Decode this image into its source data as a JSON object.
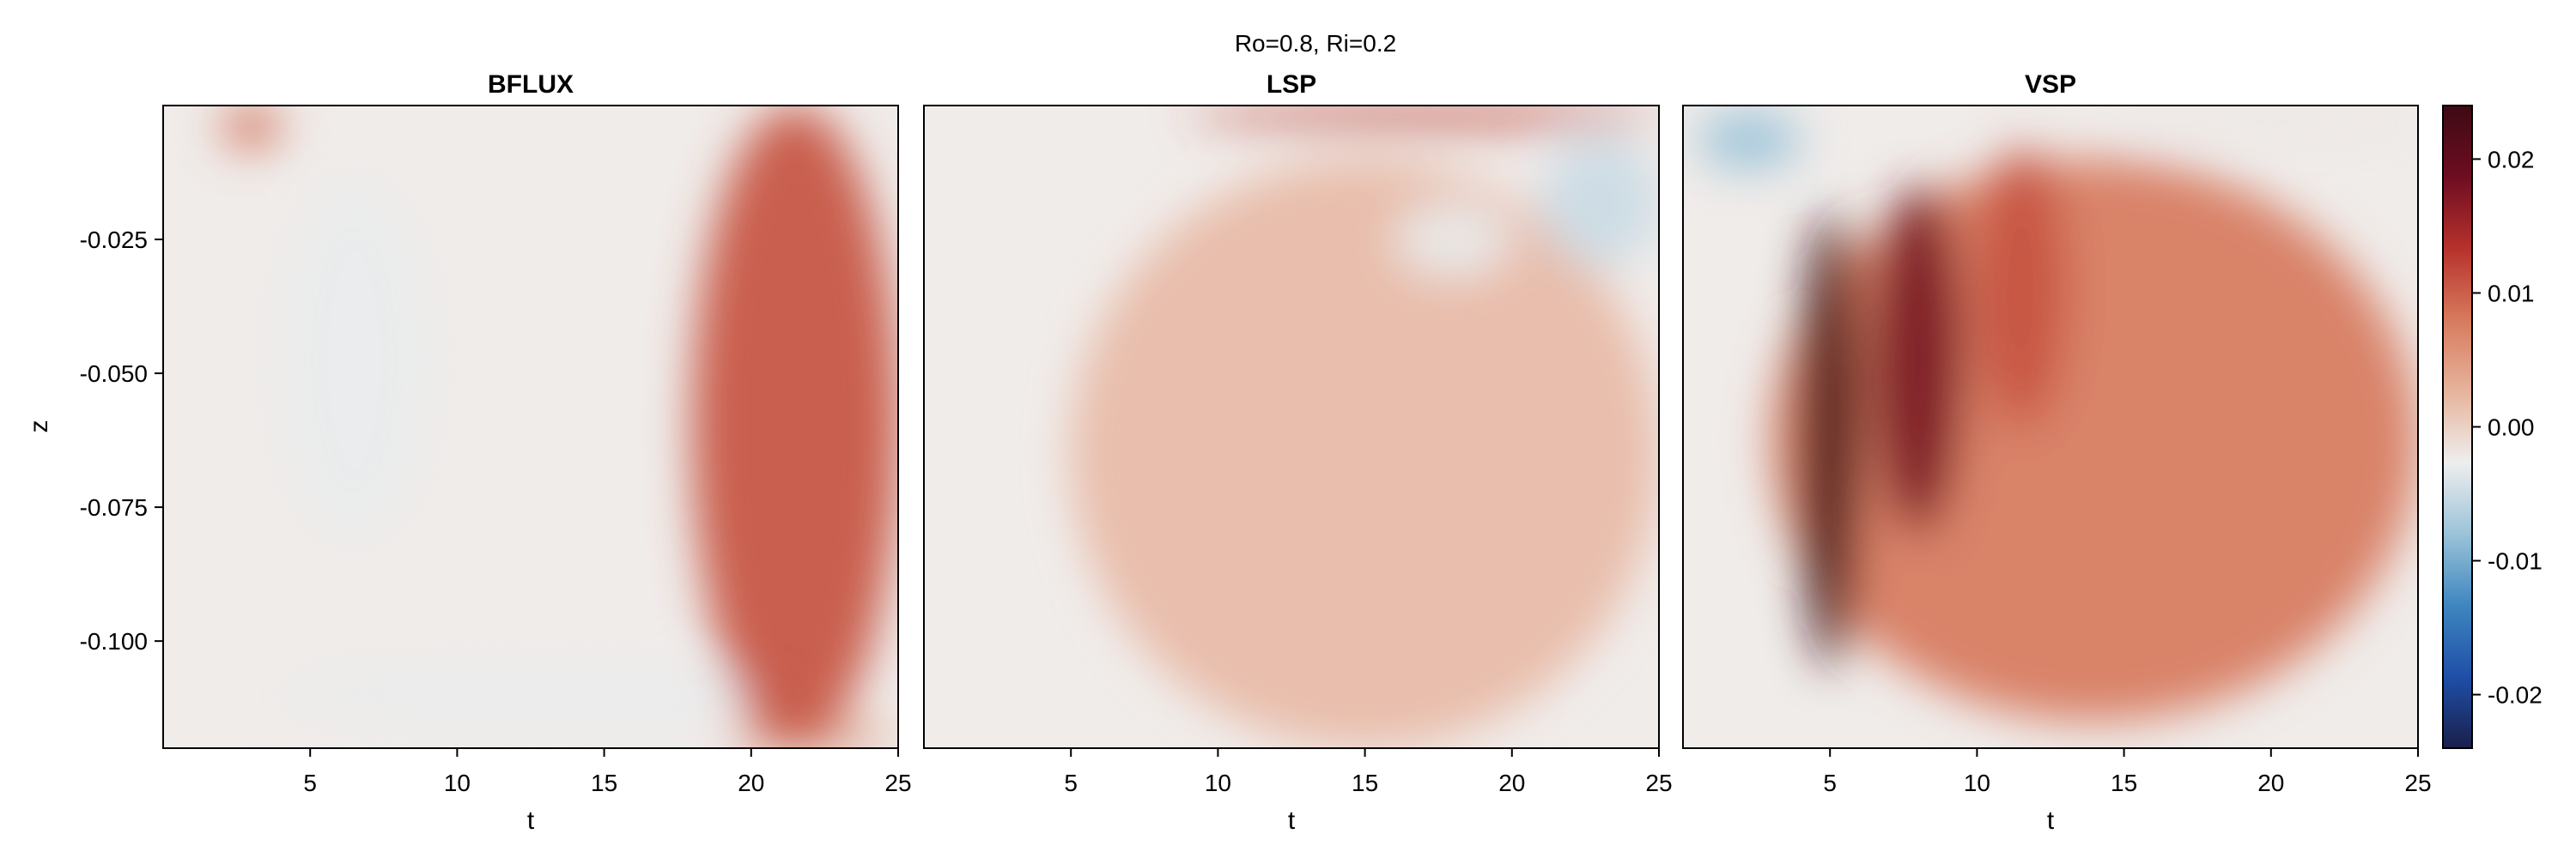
{
  "chart_data": {
    "type": "heatmap",
    "suptitle": "Ro=0.8, Ri=0.2",
    "ylabel": "z",
    "xlim": [
      0,
      25
    ],
    "ylim": [
      -0.12,
      0
    ],
    "x_ticks": [
      5,
      10,
      15,
      20,
      25
    ],
    "x_tick_labels": [
      "5",
      "10",
      "15",
      "20",
      "25"
    ],
    "y_ticks": [
      -0.025,
      -0.05,
      -0.075,
      -0.1
    ],
    "y_tick_labels": [
      "-0.025",
      "-0.050",
      "-0.075",
      "-0.100"
    ],
    "colorbar": {
      "limits": [
        -0.024,
        0.024
      ],
      "ticks": [
        0.02,
        0.01,
        0.0,
        -0.01,
        -0.02
      ],
      "tick_labels": [
        "0.02",
        "0.01",
        "0.00",
        "-0.01",
        "-0.02"
      ],
      "colormap": [
        "#1a1f4a",
        "#1f4fa8",
        "#3f86bf",
        "#9bc3d9",
        "#eeeeee",
        "#e7b39c",
        "#d77a5d",
        "#b7312c",
        "#6e0d22",
        "#3d0a14"
      ],
      "center_color": "#f0ecea"
    },
    "panels": [
      {
        "title": "BFLUX",
        "xlabel": "t",
        "features": [
          {
            "kind": "positive",
            "t": [
              18,
              25
            ],
            "z": [
              -0.12,
              0
            ],
            "peak": 0.011
          },
          {
            "kind": "positive",
            "t": [
              2,
              4
            ],
            "z": [
              -0.008,
              0
            ],
            "peak": 0.009
          },
          {
            "kind": "negative",
            "t": [
              4,
              9
            ],
            "z": [
              -0.08,
              -0.015
            ],
            "peak": -0.003
          },
          {
            "kind": "negative",
            "t": [
              4,
              22
            ],
            "z": [
              -0.115,
              -0.105
            ],
            "peak": -0.003
          },
          {
            "kind": "positive",
            "t": [
              19,
              25
            ],
            "z": [
              -0.12,
              -0.116
            ],
            "peak": 0.007
          }
        ]
      },
      {
        "title": "LSP",
        "xlabel": "t",
        "features": [
          {
            "kind": "positive",
            "t": [
              9,
              25
            ],
            "z": [
              -0.004,
              0
            ],
            "peak": 0.012
          },
          {
            "kind": "negative",
            "t": [
              16,
              20
            ],
            "z": [
              -0.032,
              -0.018
            ],
            "peak": -0.003
          },
          {
            "kind": "negative",
            "t": [
              21,
              25
            ],
            "z": [
              -0.03,
              -0.006
            ],
            "peak": -0.005
          },
          {
            "kind": "positive",
            "t": [
              5,
              25
            ],
            "z": [
              -0.12,
              -0.01
            ],
            "peak": 0.002
          }
        ]
      },
      {
        "title": "VSP",
        "xlabel": "t",
        "features": [
          {
            "kind": "positive",
            "t": [
              4,
              6
            ],
            "z": [
              -0.105,
              -0.02
            ],
            "peak": 0.024
          },
          {
            "kind": "positive",
            "t": [
              6.5,
              9.5
            ],
            "z": [
              -0.08,
              -0.015
            ],
            "peak": 0.018
          },
          {
            "kind": "positive",
            "t": [
              10,
              13
            ],
            "z": [
              -0.06,
              -0.008
            ],
            "peak": 0.011
          },
          {
            "kind": "positive",
            "t": [
              3,
              25
            ],
            "z": [
              -0.115,
              -0.01
            ],
            "peak": 0.008
          },
          {
            "kind": "negative",
            "t": [
              0.5,
              4
            ],
            "z": [
              -0.012,
              -0.001
            ],
            "peak": -0.008
          },
          {
            "kind": "negative",
            "t": [
              15,
              25
            ],
            "z": [
              -0.006,
              0
            ],
            "peak": -0.002
          }
        ]
      }
    ]
  }
}
